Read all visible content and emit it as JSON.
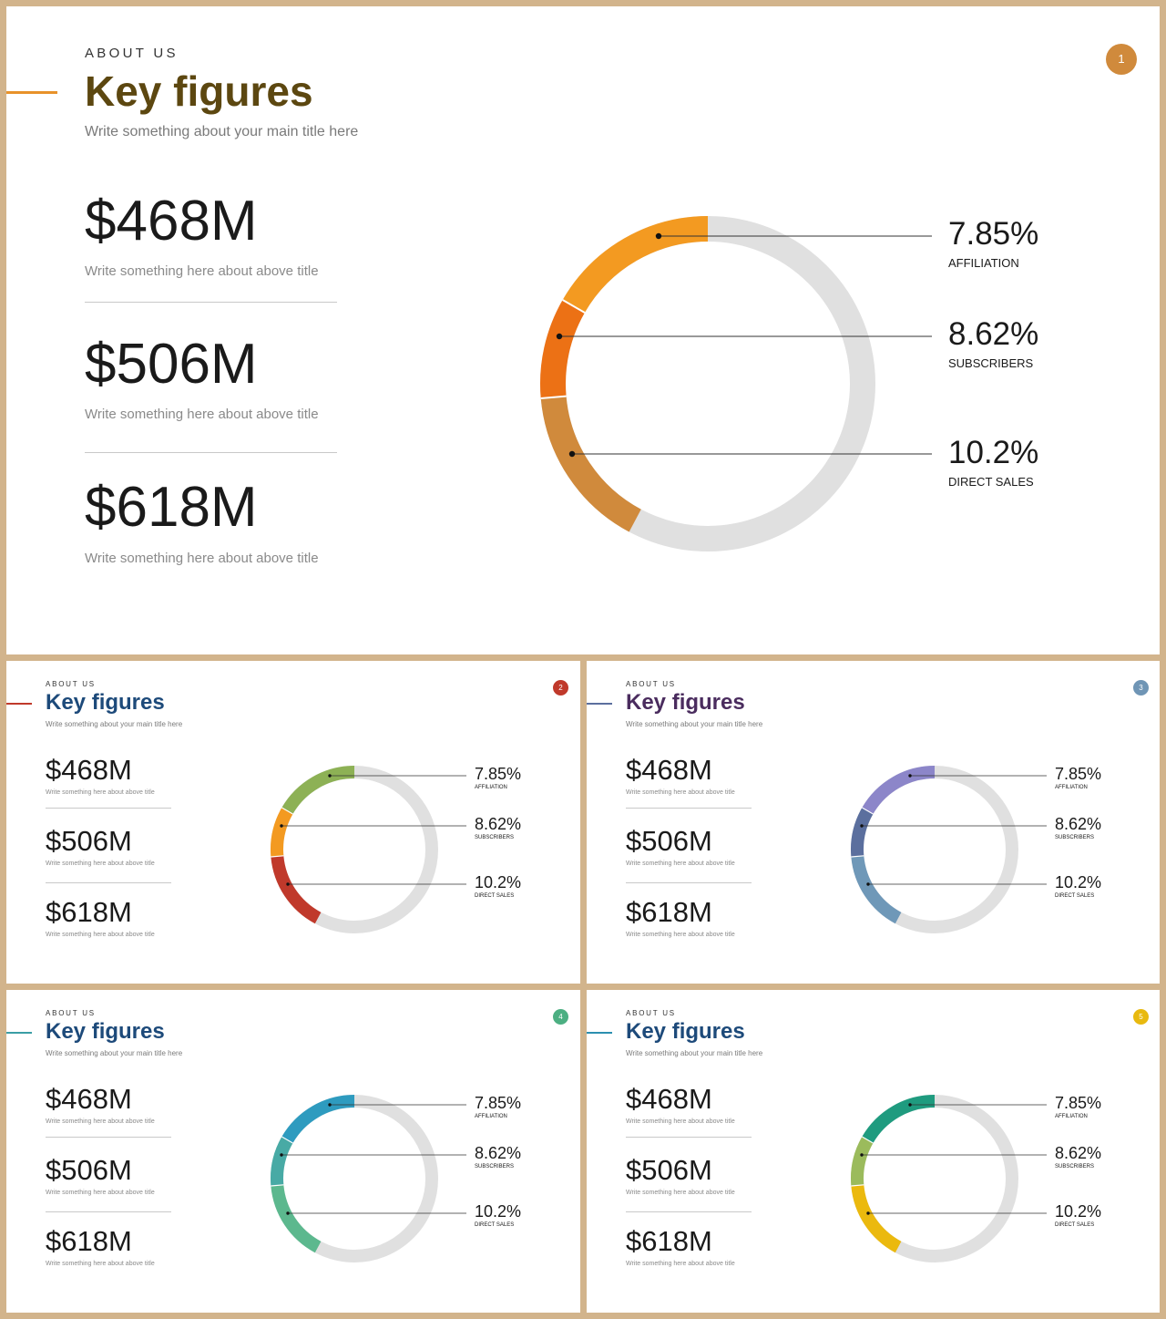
{
  "slides": [
    {
      "eyebrow": "ABOUT US",
      "title": "Key figures",
      "subtitle": "Write something about your main title here",
      "badge": "1",
      "title_color": "#5c4710",
      "accent_color": "#e8922a",
      "badge_color": "#d08a3c",
      "stats": [
        {
          "value": "$468M",
          "desc": "Write something here about above title"
        },
        {
          "value": "$506M",
          "desc": "Write something here about above title"
        },
        {
          "value": "$618M",
          "desc": "Write something here about above title"
        }
      ],
      "callouts": [
        {
          "value": "7.85%",
          "label": "AFFILIATION"
        },
        {
          "value": "8.62%",
          "label": "SUBSCRIBERS"
        },
        {
          "value": "10.2%",
          "label": "DIRECT SALES"
        }
      ],
      "segment_colors": [
        "#f39a21",
        "#ec7115",
        "#d08a3c"
      ]
    },
    {
      "eyebrow": "ABOUT US",
      "title": "Key figures",
      "subtitle": "Write something about your main title here",
      "badge": "2",
      "title_color": "#1d4a7a",
      "accent_color": "#c0392b",
      "badge_color": "#c0392b",
      "stats": [
        {
          "value": "$468M",
          "desc": "Write something here about above title"
        },
        {
          "value": "$506M",
          "desc": "Write something here about above title"
        },
        {
          "value": "$618M",
          "desc": "Write something here about above title"
        }
      ],
      "callouts": [
        {
          "value": "7.85%",
          "label": "AFFILIATION"
        },
        {
          "value": "8.62%",
          "label": "SUBSCRIBERS"
        },
        {
          "value": "10.2%",
          "label": "DIRECT SALES"
        }
      ],
      "segment_colors": [
        "#8db155",
        "#f39a21",
        "#c0392b"
      ]
    },
    {
      "eyebrow": "ABOUT US",
      "title": "Key figures",
      "subtitle": "Write something about your main title here",
      "badge": "3",
      "title_color": "#4a2c5e",
      "accent_color": "#5b6f9e",
      "badge_color": "#6f95b5",
      "stats": [
        {
          "value": "$468M",
          "desc": "Write something here about above title"
        },
        {
          "value": "$506M",
          "desc": "Write something here about above title"
        },
        {
          "value": "$618M",
          "desc": "Write something here about above title"
        }
      ],
      "callouts": [
        {
          "value": "7.85%",
          "label": "AFFILIATION"
        },
        {
          "value": "8.62%",
          "label": "SUBSCRIBERS"
        },
        {
          "value": "10.2%",
          "label": "DIRECT SALES"
        }
      ],
      "segment_colors": [
        "#8c86c9",
        "#5b6f9e",
        "#6f98b8"
      ]
    },
    {
      "eyebrow": "ABOUT US",
      "title": "Key figures",
      "subtitle": "Write something about your main title here",
      "badge": "4",
      "title_color": "#1d4a7a",
      "accent_color": "#3a9ea5",
      "badge_color": "#4caf82",
      "stats": [
        {
          "value": "$468M",
          "desc": "Write something here about above title"
        },
        {
          "value": "$506M",
          "desc": "Write something here about above title"
        },
        {
          "value": "$618M",
          "desc": "Write something here about above title"
        }
      ],
      "callouts": [
        {
          "value": "7.85%",
          "label": "AFFILIATION"
        },
        {
          "value": "8.62%",
          "label": "SUBSCRIBERS"
        },
        {
          "value": "10.2%",
          "label": "DIRECT SALES"
        }
      ],
      "segment_colors": [
        "#2e9bbf",
        "#48aaa5",
        "#5cb88e"
      ]
    },
    {
      "eyebrow": "ABOUT US",
      "title": "Key figures",
      "subtitle": "Write something about your main title here",
      "badge": "5",
      "title_color": "#1d4a7a",
      "accent_color": "#2b8fb0",
      "badge_color": "#e8b90f",
      "stats": [
        {
          "value": "$468M",
          "desc": "Write something here about above title"
        },
        {
          "value": "$506M",
          "desc": "Write something here about above title"
        },
        {
          "value": "$618M",
          "desc": "Write something here about above title"
        }
      ],
      "callouts": [
        {
          "value": "7.85%",
          "label": "AFFILIATION"
        },
        {
          "value": "8.62%",
          "label": "SUBSCRIBERS"
        },
        {
          "value": "10.2%",
          "label": "DIRECT SALES"
        }
      ],
      "segment_colors": [
        "#1f9b7f",
        "#9bbb5c",
        "#ebb90e"
      ]
    }
  ],
  "track_color": "#e0e0e0"
}
